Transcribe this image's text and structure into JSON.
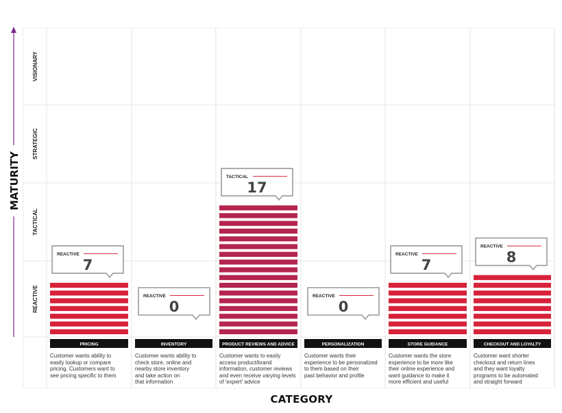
{
  "chart_data": {
    "type": "bar",
    "xlabel": "CATEGORY",
    "ylabel": "MATURITY",
    "levels": [
      "REACTIVE",
      "TACTICAL",
      "STRATEGIC",
      "VISIONARY"
    ],
    "categories": [
      {
        "label": "PRICING",
        "maturity": "REACTIVE",
        "value": 7,
        "bar_stripes": 7,
        "description": "Customer wants ability to\neasily lookup or compare\npricing. Customers want to\nsee pricing specific to them"
      },
      {
        "label": "INVENTORY",
        "maturity": "REACTIVE",
        "value": 0,
        "bar_stripes": 0,
        "description": "Customer wants ability to\ncheck store, online and\nnearby store inventory\nand take action on\nthat information"
      },
      {
        "label": "PRODUCT REVIEWS AND ADVICE",
        "maturity": "TACTICAL",
        "value": 17,
        "bar_stripes": 17,
        "description": "Customer wants to easily\naccess product/brand\ninformation, customer reviews\nand even receive varying levels\nof 'expert' advice"
      },
      {
        "label": "PERSONALIZATION",
        "maturity": "REACTIVE",
        "value": 0,
        "bar_stripes": 0,
        "description": "Customer wants their\nexperience to be personalized\nto them based on their\npast behavior and profile"
      },
      {
        "label": "STORE GUIDANCE",
        "maturity": "REACTIVE",
        "value": 7,
        "bar_stripes": 7,
        "description": "Customer wants the store\nexperience to be more like\ntheir online experience and\nwant guidance to make it\nmore efficient and useful"
      },
      {
        "label": "CHECKOUT AND LOYALTY",
        "maturity": "REACTIVE",
        "value": 8,
        "bar_stripes": 8,
        "description": "Customer want shorter\ncheckout and return lines\nand they want loyalty\nprograms to be automated\nand straight forward"
      }
    ],
    "colors": {
      "reactive": "#d7223a",
      "tactical": "#b4254f",
      "label_bg": "#111111",
      "axis_arrow": "#7b2a8a",
      "callout_accent": "#d7223a",
      "grid": "#dddddd"
    },
    "grid": true,
    "legend": "none"
  }
}
